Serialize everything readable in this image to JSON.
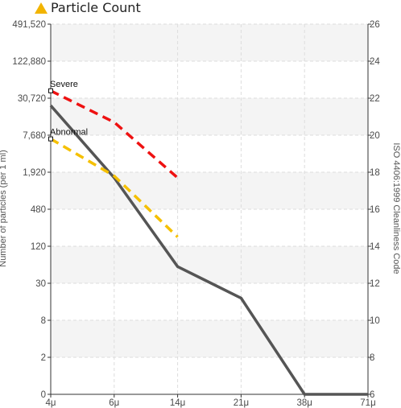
{
  "chart_data": {
    "type": "line",
    "title": "Particle Count",
    "title_icon": "warning-triangle-icon",
    "title_icon_color": "#f2b400",
    "x_categories": [
      "4μ",
      "6μ",
      "14μ",
      "21μ",
      "38μ",
      "71μ"
    ],
    "y_left": {
      "label": "Number of particles (per 1 ml)",
      "scale": "log2",
      "ticks": [
        "0",
        "2",
        "8",
        "30",
        "120",
        "480",
        "1,920",
        "7,680",
        "30,720",
        "122,880",
        "491,520"
      ]
    },
    "y_right": {
      "label": "ISO 4406:1999 Cleanliness Code",
      "range": [
        6,
        26
      ],
      "ticks": [
        "6",
        "8",
        "10",
        "12",
        "14",
        "16",
        "18",
        "20",
        "22",
        "24",
        "26"
      ]
    },
    "series": [
      {
        "style": "solid",
        "color": "#555555",
        "code_values": [
          21.6,
          17.7,
          12.9,
          11.2,
          6.0,
          6.0
        ]
      },
      {
        "name": "Severe",
        "style": "dashed",
        "color": "#ee1111",
        "code_values": [
          22.4,
          20.7,
          17.7
        ]
      },
      {
        "name": "Abnormal",
        "style": "dashed",
        "color": "#f5c000",
        "code_values": [
          19.8,
          17.8,
          14.5
        ]
      }
    ],
    "grid": true,
    "alternating_bands": true
  }
}
